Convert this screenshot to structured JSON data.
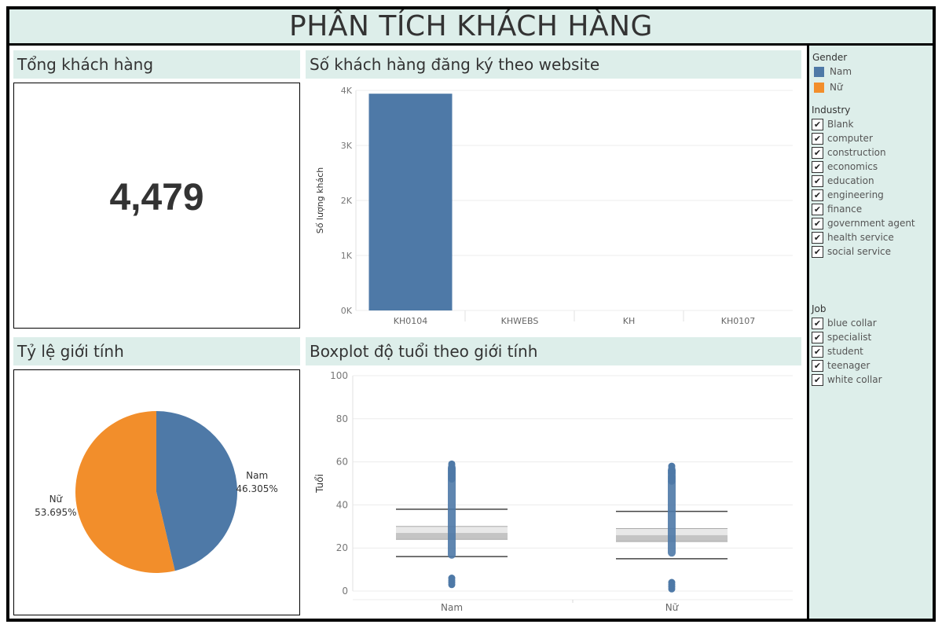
{
  "dashboard_title": "PHÂN TÍCH KHÁCH HÀNG",
  "kpi": {
    "title": "Tổng khách hàng",
    "value": "4,479"
  },
  "website_panel": {
    "title": "Số khách hàng đăng ký theo website"
  },
  "gender_panel": {
    "title": "Tỷ lệ giới tính"
  },
  "boxplot_panel": {
    "title": "Boxplot độ tuổi theo giới tính"
  },
  "colors": {
    "nam": "#4e79a7",
    "nu": "#f28e2b",
    "header_bg": "#ddeeea",
    "box_light": "#e8e8e8",
    "box_dark": "#c4c4c4"
  },
  "filters": {
    "gender": {
      "title": "Gender",
      "items": [
        {
          "label": "Nam",
          "color": "#4e79a7"
        },
        {
          "label": "Nữ",
          "color": "#f28e2b"
        }
      ]
    },
    "industry": {
      "title": "Industry",
      "items": [
        "Blank",
        "computer",
        "construction",
        "economics",
        "education",
        "engineering",
        "finance",
        "government agent",
        "health service",
        "social service"
      ]
    },
    "job": {
      "title": "Job",
      "items": [
        "blue collar",
        "specialist",
        "student",
        "teenager",
        "white collar"
      ]
    }
  },
  "chart_data": [
    {
      "type": "bar",
      "title": "Số khách hàng đăng ký theo website",
      "xlabel": "",
      "ylabel": "Số lượng khách",
      "categories": [
        "KH0104",
        "KHWEBS",
        "KH",
        "KH0107"
      ],
      "values": [
        3940,
        0,
        0,
        0
      ],
      "ylim": [
        0,
        4000
      ],
      "yticks": [
        0,
        1000,
        2000,
        3000,
        4000
      ],
      "ytick_labels": [
        "0K",
        "1K",
        "2K",
        "3K",
        "4K"
      ],
      "grid": true
    },
    {
      "type": "pie",
      "title": "Tỷ lệ giới tính",
      "slices": [
        {
          "label": "Nam",
          "value": 46.305,
          "value_label": "46.305%",
          "color": "#4e79a7"
        },
        {
          "label": "Nữ",
          "value": 53.695,
          "value_label": "53.695%",
          "color": "#f28e2b"
        }
      ]
    },
    {
      "type": "boxplot",
      "title": "Boxplot độ tuổi theo giới tính",
      "xlabel": "",
      "ylabel": "Tuổi",
      "ylim": [
        0,
        100
      ],
      "yticks": [
        0,
        20,
        40,
        60,
        80,
        100
      ],
      "grid": true,
      "groups": [
        {
          "name": "Nam",
          "min": 16,
          "q1": 24,
          "median": 27,
          "q3": 30,
          "max": 38,
          "range_min": 15,
          "range_max": 59,
          "outliers": [
            3,
            4,
            5,
            6,
            52,
            53,
            54,
            55,
            56,
            57,
            58,
            59
          ]
        },
        {
          "name": "Nữ",
          "min": 15,
          "q1": 23,
          "median": 26,
          "q3": 29,
          "max": 37,
          "range_min": 16,
          "range_max": 58,
          "outliers": [
            1,
            2,
            3,
            4,
            51,
            52,
            53,
            55,
            56,
            57,
            58
          ]
        }
      ]
    }
  ]
}
